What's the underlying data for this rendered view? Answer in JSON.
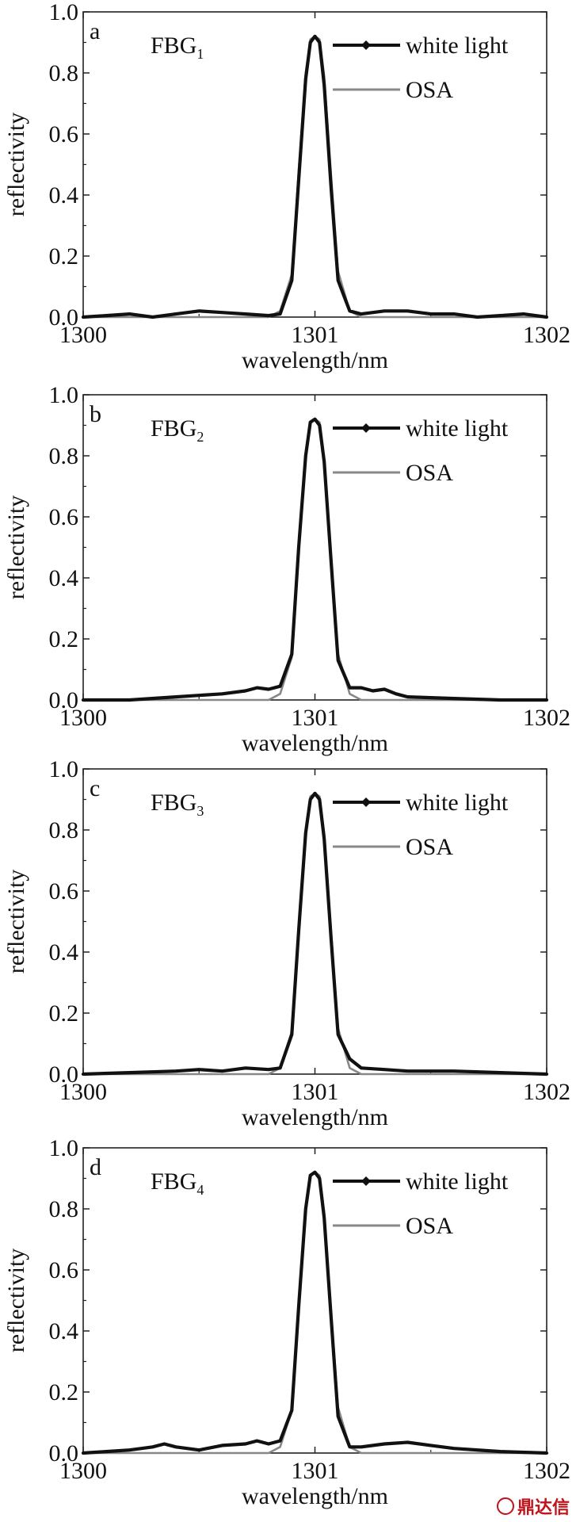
{
  "figure": {
    "watermark": "鼎达信"
  },
  "chart_data": [
    {
      "type": "line",
      "panel": "a",
      "label_main": "FBG",
      "label_sub": "1",
      "xlabel": "wavelength/nm",
      "ylabel": "reflectivity",
      "xlim": [
        1300,
        1302
      ],
      "ylim": [
        0,
        1.0
      ],
      "xticks": [
        "1300",
        "1301",
        "1302"
      ],
      "yticks": [
        "0.0",
        "0.2",
        "0.4",
        "0.6",
        "0.8",
        "1.0"
      ],
      "legend_position": "top-right",
      "peak": 0.92,
      "series": [
        {
          "name": "white light",
          "x": [
            1300.0,
            1300.1,
            1300.2,
            1300.3,
            1300.4,
            1300.5,
            1300.6,
            1300.7,
            1300.8,
            1300.85,
            1300.9,
            1300.93,
            1300.96,
            1300.98,
            1301.0,
            1301.02,
            1301.04,
            1301.07,
            1301.1,
            1301.15,
            1301.2,
            1301.3,
            1301.4,
            1301.5,
            1301.6,
            1301.7,
            1301.8,
            1301.9,
            1302.0
          ],
          "values": [
            0.0,
            0.005,
            0.01,
            0.0,
            0.01,
            0.02,
            0.015,
            0.01,
            0.005,
            0.01,
            0.12,
            0.45,
            0.78,
            0.9,
            0.92,
            0.9,
            0.76,
            0.42,
            0.12,
            0.02,
            0.01,
            0.02,
            0.02,
            0.01,
            0.01,
            0.0,
            0.005,
            0.01,
            0.0
          ]
        },
        {
          "name": "OSA",
          "x": [
            1300.0,
            1300.8,
            1300.85,
            1300.9,
            1300.93,
            1300.96,
            1300.98,
            1301.0,
            1301.02,
            1301.04,
            1301.07,
            1301.1,
            1301.15,
            1301.2,
            1302.0
          ],
          "values": [
            0.0,
            0.0,
            0.02,
            0.14,
            0.48,
            0.8,
            0.91,
            0.92,
            0.91,
            0.79,
            0.46,
            0.15,
            0.02,
            0.0,
            0.0
          ]
        }
      ]
    },
    {
      "type": "line",
      "panel": "b",
      "label_main": "FBG",
      "label_sub": "2",
      "xlabel": "wavelength/nm",
      "ylabel": "reflectivity",
      "xlim": [
        1300,
        1302
      ],
      "ylim": [
        0,
        1.0
      ],
      "xticks": [
        "1300",
        "1301",
        "1302"
      ],
      "yticks": [
        "0.0",
        "0.2",
        "0.4",
        "0.6",
        "0.8",
        "1.0"
      ],
      "legend_position": "top-right",
      "peak": 0.92,
      "series": [
        {
          "name": "white light",
          "x": [
            1300.0,
            1300.2,
            1300.4,
            1300.6,
            1300.7,
            1300.75,
            1300.8,
            1300.85,
            1300.9,
            1300.93,
            1300.96,
            1300.98,
            1301.0,
            1301.02,
            1301.04,
            1301.07,
            1301.1,
            1301.15,
            1301.2,
            1301.25,
            1301.3,
            1301.35,
            1301.4,
            1301.6,
            1301.8,
            1302.0
          ],
          "values": [
            0.0,
            0.0,
            0.01,
            0.02,
            0.03,
            0.04,
            0.035,
            0.045,
            0.15,
            0.5,
            0.8,
            0.91,
            0.92,
            0.9,
            0.78,
            0.45,
            0.13,
            0.04,
            0.04,
            0.03,
            0.035,
            0.02,
            0.01,
            0.005,
            0.0,
            0.0
          ]
        },
        {
          "name": "OSA",
          "x": [
            1300.0,
            1300.8,
            1300.85,
            1300.9,
            1300.93,
            1300.96,
            1300.98,
            1301.0,
            1301.02,
            1301.04,
            1301.07,
            1301.1,
            1301.15,
            1301.2,
            1302.0
          ],
          "values": [
            0.0,
            0.0,
            0.02,
            0.14,
            0.48,
            0.8,
            0.91,
            0.92,
            0.91,
            0.79,
            0.46,
            0.15,
            0.02,
            0.0,
            0.0
          ]
        }
      ]
    },
    {
      "type": "line",
      "panel": "c",
      "label_main": "FBG",
      "label_sub": "3",
      "xlabel": "wavelength/nm",
      "ylabel": "reflectivity",
      "xlim": [
        1300,
        1302
      ],
      "ylim": [
        0,
        1.0
      ],
      "xticks": [
        "1300",
        "1301",
        "1302"
      ],
      "yticks": [
        "0.0",
        "0.2",
        "0.4",
        "0.6",
        "0.8",
        "1.0"
      ],
      "legend_position": "top-right",
      "peak": 0.92,
      "series": [
        {
          "name": "white light",
          "x": [
            1300.0,
            1300.2,
            1300.4,
            1300.5,
            1300.6,
            1300.7,
            1300.8,
            1300.85,
            1300.9,
            1300.93,
            1300.96,
            1300.98,
            1301.0,
            1301.02,
            1301.04,
            1301.07,
            1301.1,
            1301.15,
            1301.2,
            1301.3,
            1301.4,
            1301.6,
            1301.8,
            1302.0
          ],
          "values": [
            0.0,
            0.005,
            0.01,
            0.015,
            0.01,
            0.02,
            0.015,
            0.02,
            0.13,
            0.47,
            0.79,
            0.9,
            0.92,
            0.9,
            0.77,
            0.44,
            0.13,
            0.05,
            0.02,
            0.015,
            0.01,
            0.01,
            0.005,
            0.0
          ]
        },
        {
          "name": "OSA",
          "x": [
            1300.0,
            1300.8,
            1300.85,
            1300.9,
            1300.93,
            1300.96,
            1300.98,
            1301.0,
            1301.02,
            1301.04,
            1301.07,
            1301.1,
            1301.15,
            1301.2,
            1302.0
          ],
          "values": [
            0.0,
            0.0,
            0.02,
            0.14,
            0.48,
            0.8,
            0.91,
            0.92,
            0.91,
            0.79,
            0.46,
            0.15,
            0.02,
            0.0,
            0.0
          ]
        }
      ]
    },
    {
      "type": "line",
      "panel": "d",
      "label_main": "FBG",
      "label_sub": "4",
      "xlabel": "wavelength/nm",
      "ylabel": "reflectivity",
      "xlim": [
        1300,
        1302
      ],
      "ylim": [
        0,
        1.0
      ],
      "xticks": [
        "1300",
        "1301",
        "1302"
      ],
      "yticks": [
        "0.0",
        "0.2",
        "0.4",
        "0.6",
        "0.8",
        "1.0"
      ],
      "legend_position": "top-right",
      "peak": 0.92,
      "series": [
        {
          "name": "white light",
          "x": [
            1300.0,
            1300.1,
            1300.2,
            1300.3,
            1300.35,
            1300.4,
            1300.5,
            1300.6,
            1300.7,
            1300.75,
            1300.8,
            1300.85,
            1300.9,
            1300.93,
            1300.96,
            1300.98,
            1301.0,
            1301.02,
            1301.04,
            1301.07,
            1301.1,
            1301.15,
            1301.2,
            1301.3,
            1301.4,
            1301.5,
            1301.6,
            1301.8,
            1302.0
          ],
          "values": [
            0.0,
            0.005,
            0.01,
            0.02,
            0.03,
            0.02,
            0.01,
            0.025,
            0.03,
            0.04,
            0.03,
            0.04,
            0.14,
            0.48,
            0.8,
            0.91,
            0.92,
            0.9,
            0.77,
            0.44,
            0.12,
            0.02,
            0.02,
            0.03,
            0.035,
            0.025,
            0.015,
            0.005,
            0.0
          ]
        },
        {
          "name": "OSA",
          "x": [
            1300.0,
            1300.8,
            1300.85,
            1300.9,
            1300.93,
            1300.96,
            1300.98,
            1301.0,
            1301.02,
            1301.04,
            1301.07,
            1301.1,
            1301.15,
            1301.2,
            1302.0
          ],
          "values": [
            0.0,
            0.0,
            0.02,
            0.14,
            0.48,
            0.8,
            0.91,
            0.92,
            0.91,
            0.79,
            0.46,
            0.15,
            0.02,
            0.0,
            0.0
          ]
        }
      ]
    }
  ]
}
